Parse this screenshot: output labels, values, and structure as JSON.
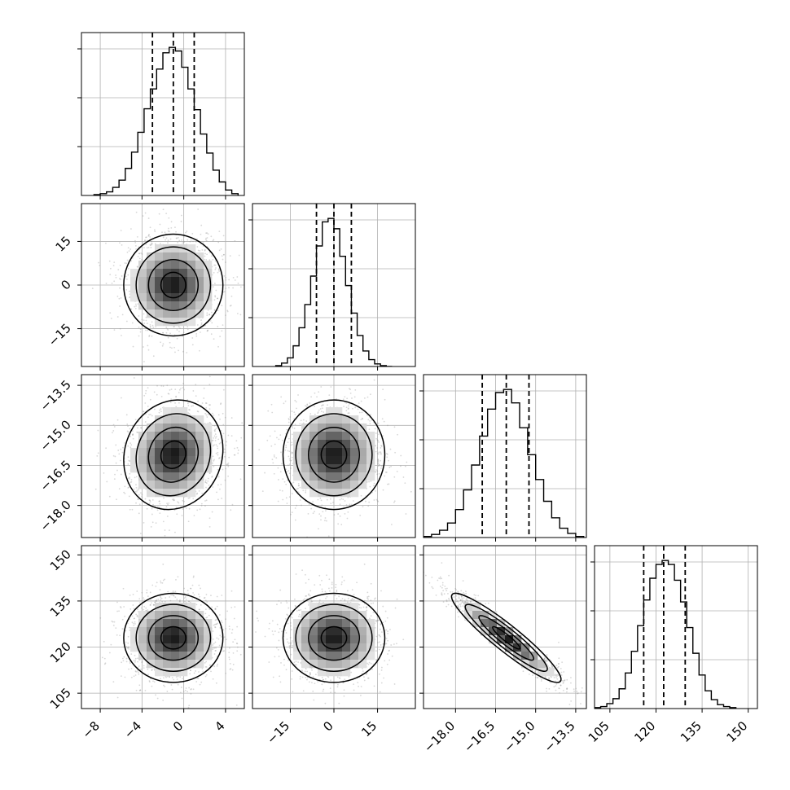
{
  "chart_data": {
    "type": "corner",
    "grid": true,
    "colors": {
      "line": "#000000",
      "grid": "#b0b0b0",
      "background": "#ffffff"
    },
    "parameters": [
      {
        "index": 0,
        "range": [
          -9.8,
          5.8
        ],
        "tick_values": [
          -8,
          -4,
          0,
          4
        ],
        "tick_labels": [
          "−8",
          "−4",
          "0",
          "4"
        ],
        "quantiles": [
          -3.0,
          -1.0,
          1.0
        ]
      },
      {
        "index": 1,
        "range": [
          -28.0,
          28.0
        ],
        "tick_values": [
          -15,
          0,
          15
        ],
        "tick_labels": [
          "−15",
          "0",
          "15"
        ],
        "quantiles": [
          -6.0,
          0.0,
          6.0
        ]
      },
      {
        "index": 2,
        "range": [
          -19.2,
          -13.1
        ],
        "tick_values": [
          -18.0,
          -16.5,
          -15.0,
          -13.5
        ],
        "tick_labels": [
          "−18.0",
          "−16.5",
          "−15.0",
          "−13.5"
        ],
        "quantiles": [
          -17.0,
          -16.1,
          -15.25
        ]
      },
      {
        "index": 3,
        "range": [
          100.0,
          153.0
        ],
        "tick_values": [
          105,
          120,
          135,
          150
        ],
        "tick_labels": [
          "105",
          "120",
          "135",
          "150"
        ],
        "quantiles": [
          116.0,
          122.5,
          129.5
        ]
      }
    ],
    "histograms": [
      {
        "param": 0,
        "bin_edges": [
          -8.6,
          -8.0,
          -7.4,
          -6.8,
          -6.2,
          -5.6,
          -5.0,
          -4.4,
          -3.8,
          -3.2,
          -2.6,
          -2.0,
          -1.4,
          -0.8,
          -0.2,
          0.4,
          1.0,
          1.6,
          2.2,
          2.8,
          3.4,
          4.0,
          4.6,
          5.2
        ],
        "counts": [
          1,
          2,
          4,
          9,
          17,
          30,
          48,
          70,
          96,
          118,
          140,
          158,
          164,
          160,
          142,
          118,
          95,
          68,
          47,
          28,
          15,
          6,
          2
        ]
      },
      {
        "param": 1,
        "bin_edges": [
          -20,
          -18,
          -16,
          -14,
          -12,
          -10,
          -8,
          -6,
          -4,
          -2,
          0,
          2,
          4,
          6,
          8,
          10,
          12,
          14,
          16,
          18,
          20
        ],
        "counts": [
          1,
          4,
          10,
          24,
          45,
          72,
          105,
          140,
          168,
          172,
          160,
          128,
          94,
          62,
          36,
          18,
          8,
          3,
          1,
          0
        ]
      },
      {
        "param": 2,
        "bin_edges": [
          -19.2,
          -18.9,
          -18.6,
          -18.3,
          -18.0,
          -17.7,
          -17.4,
          -17.1,
          -16.8,
          -16.5,
          -16.2,
          -15.9,
          -15.6,
          -15.3,
          -15.0,
          -14.7,
          -14.4,
          -14.1,
          -13.8,
          -13.5,
          -13.2
        ],
        "counts": [
          1,
          3,
          7,
          14,
          27,
          46,
          70,
          98,
          124,
          140,
          143,
          130,
          106,
          80,
          56,
          35,
          19,
          9,
          4,
          1
        ]
      },
      {
        "param": 3,
        "bin_edges": [
          100,
          102,
          104,
          106,
          108,
          110,
          112,
          114,
          116,
          118,
          120,
          122,
          124,
          126,
          128,
          130,
          132,
          134,
          136,
          138,
          140,
          142,
          144,
          146
        ],
        "counts": [
          1,
          2,
          5,
          10,
          20,
          36,
          58,
          84,
          110,
          132,
          146,
          150,
          146,
          130,
          108,
          82,
          56,
          34,
          18,
          9,
          4,
          2,
          1
        ]
      }
    ],
    "density_panels": [
      {
        "x_param": 0,
        "y_param": 1,
        "center": [
          -1.0,
          0.0
        ],
        "sigma": [
          1.9,
          7.0
        ],
        "rho": 0.0
      },
      {
        "x_param": 0,
        "y_param": 2,
        "center": [
          -1.0,
          -16.1
        ],
        "sigma": [
          1.9,
          0.82
        ],
        "rho": 0.1
      },
      {
        "x_param": 1,
        "y_param": 2,
        "center": [
          0.0,
          -16.1
        ],
        "sigma": [
          7.0,
          0.82
        ],
        "rho": 0.0
      },
      {
        "x_param": 0,
        "y_param": 3,
        "center": [
          -1.0,
          123.0
        ],
        "sigma": [
          1.9,
          5.8
        ],
        "rho": 0.0
      },
      {
        "x_param": 1,
        "y_param": 3,
        "center": [
          0.0,
          123.0
        ],
        "sigma": [
          7.0,
          5.8
        ],
        "rho": 0.0
      },
      {
        "x_param": 2,
        "y_param": 3,
        "center": [
          -16.1,
          123.0
        ],
        "sigma": [
          0.82,
          5.8
        ],
        "rho": -0.93
      }
    ],
    "contour_levels_sigma": [
      0.5,
      1.0,
      1.5,
      2.0
    ]
  }
}
